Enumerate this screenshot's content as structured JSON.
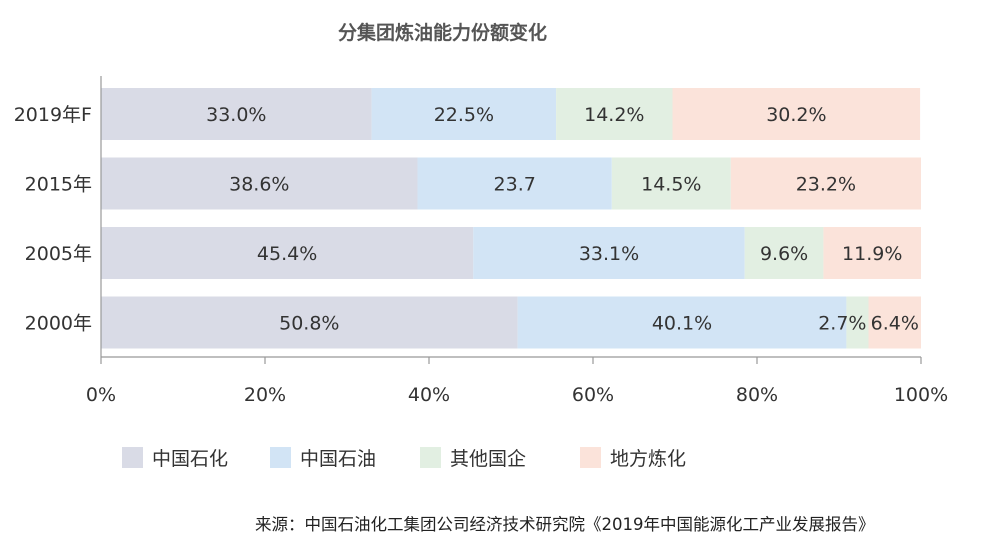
{
  "chart_data": {
    "type": "bar",
    "orientation": "horizontal",
    "stacked": true,
    "title": "分集团炼油能力份额变化",
    "categories": [
      "2019年F",
      "2015年",
      "2005年",
      "2000年"
    ],
    "xlim": [
      0,
      100
    ],
    "x_ticks": [
      "0%",
      "20%",
      "40%",
      "60%",
      "80%",
      "100%"
    ],
    "legend_position": "bottom",
    "grid": false,
    "series": [
      {
        "name": "中国石化",
        "color": "#d9dbe6",
        "values": [
          33.0,
          38.6,
          45.4,
          50.8
        ],
        "labels": [
          "33.0%",
          "38.6%",
          "45.4%",
          "50.8%"
        ]
      },
      {
        "name": "中国石油",
        "color": "#d2e4f5",
        "values": [
          22.5,
          23.7,
          33.1,
          40.1
        ],
        "labels": [
          "22.5%",
          "23.7",
          "33.1%",
          "40.1%"
        ]
      },
      {
        "name": "其他国企",
        "color": "#e2efe2",
        "values": [
          14.2,
          14.5,
          9.6,
          2.7
        ],
        "labels": [
          "14.2%",
          "14.5%",
          "9.6%",
          "2.7%"
        ]
      },
      {
        "name": "地方炼化",
        "color": "#fbe3da",
        "values": [
          30.2,
          23.2,
          11.9,
          6.4
        ],
        "labels": [
          "30.2%",
          "23.2%",
          "11.9%",
          "6.4%"
        ]
      }
    ],
    "source": "来源：中国石油化工集团公司经济技术研究院《2019年中国能源化工产业发展报告》"
  }
}
